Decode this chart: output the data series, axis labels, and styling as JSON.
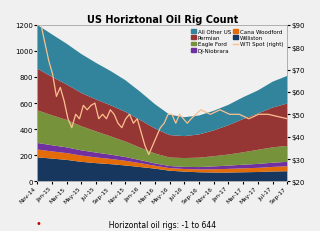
{
  "title": "US Horiztonal Oil Rig Count",
  "subtitle": "  Horizontal oil rigs: -1 to 644",
  "x_labels": [
    "Nov-14",
    "Jan-15",
    "Mar-15",
    "May-15",
    "Jul-15",
    "Sep-15",
    "Nov-15",
    "Jan-16",
    "Mar-16",
    "May-16",
    "Jul-16",
    "Sep-16",
    "Nov-16",
    "Jan-17",
    "Mar-17",
    "May-17",
    "Jul-17",
    "Sep-17"
  ],
  "stacked_series": {
    "Williston": [
      185,
      175,
      165,
      150,
      140,
      132,
      122,
      110,
      98,
      82,
      75,
      70,
      68,
      68,
      70,
      72,
      76,
      78
    ],
    "Cana Woodford": [
      60,
      55,
      52,
      48,
      44,
      40,
      36,
      30,
      22,
      20,
      20,
      22,
      25,
      28,
      30,
      32,
      35,
      38
    ],
    "DJ-Niobrara": [
      50,
      47,
      44,
      40,
      37,
      33,
      29,
      23,
      18,
      16,
      16,
      18,
      22,
      25,
      28,
      30,
      32,
      34
    ],
    "Eagle Ford": [
      250,
      230,
      210,
      185,
      162,
      140,
      118,
      96,
      76,
      65,
      68,
      72,
      78,
      85,
      95,
      108,
      118,
      122
    ],
    "Permian": [
      320,
      295,
      272,
      255,
      245,
      238,
      228,
      212,
      192,
      172,
      168,
      178,
      198,
      225,
      255,
      278,
      305,
      325
    ],
    "All Other US": [
      335,
      325,
      312,
      298,
      280,
      262,
      242,
      216,
      186,
      156,
      145,
      145,
      150,
      156,
      167,
      177,
      198,
      212
    ]
  },
  "stacked_colors": {
    "Williston": "#17375e",
    "Cana Woodford": "#e36c09",
    "DJ-Niobrara": "#7030a0",
    "Eagle Ford": "#76933c",
    "Permian": "#963634",
    "All Other US": "#31849b"
  },
  "wti_spot": [
    100,
    90,
    82,
    74,
    68,
    58,
    62,
    56,
    48,
    44,
    50,
    48,
    54,
    52,
    54,
    55,
    48,
    50,
    48,
    52,
    50,
    46,
    44,
    48,
    50,
    46,
    48,
    42,
    36,
    32,
    36,
    40,
    44,
    46,
    50,
    50,
    46,
    50,
    48,
    46,
    48,
    52,
    50,
    52,
    50,
    50,
    48,
    50,
    50,
    48
  ],
  "wti_x": [
    0,
    0.2,
    0.4,
    0.6,
    0.8,
    1.0,
    1.2,
    1.4,
    1.6,
    1.8,
    2.0,
    2.2,
    2.4,
    2.6,
    2.8,
    3.0,
    3.2,
    3.4,
    3.6,
    3.8,
    4.0,
    4.2,
    4.4,
    4.6,
    4.8,
    5.0,
    5.2,
    5.4,
    5.6,
    5.8,
    6.0,
    6.2,
    6.4,
    6.6,
    6.8,
    7.0,
    7.2,
    7.4,
    7.6,
    7.8,
    8.0,
    8.5,
    9.0,
    9.5,
    10.0,
    10.5,
    11.0,
    11.5,
    12.0,
    13.0
  ],
  "wti_color": "#fac090",
  "ylim_left": [
    0,
    1200
  ],
  "ylim_right": [
    20,
    90
  ],
  "yticks_left": [
    0,
    200,
    400,
    600,
    800,
    1000,
    1200
  ],
  "yticks_right": [
    20,
    30,
    40,
    50,
    60,
    70,
    80,
    90
  ],
  "ytick_right_labels": [
    "$20",
    "$30",
    "$40",
    "$50",
    "$60",
    "$70",
    "$80",
    "$90"
  ],
  "background_color": "#f0f0f0",
  "subtitle_dot_color": "#c00000"
}
